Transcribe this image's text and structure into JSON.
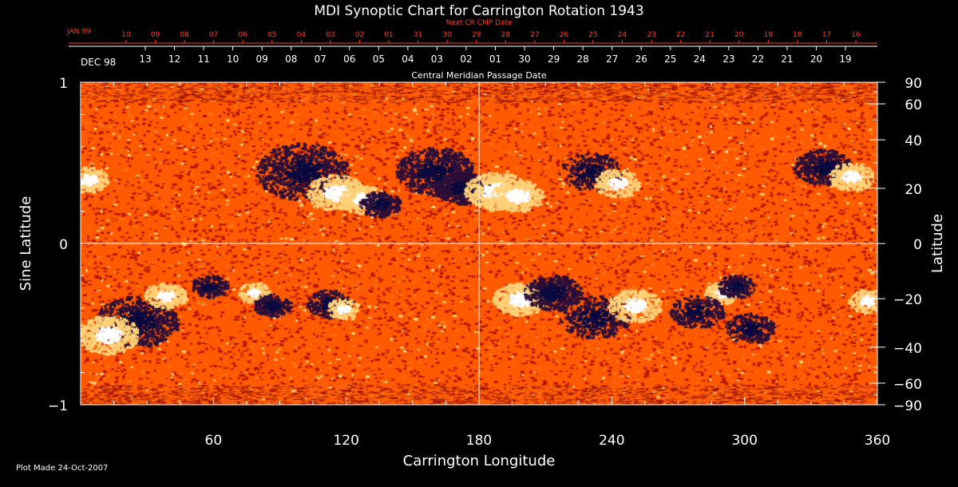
{
  "chart_data": {
    "type": "heatmap",
    "title": "MDI Synoptic Chart for Carrington Rotation 1943",
    "xlabel": "Carrington Longitude",
    "ylabel_left": "Sine Latitude",
    "ylabel_right": "Latitude",
    "xlim": [
      0,
      360
    ],
    "ylim": [
      -1,
      1
    ],
    "x_ticks": [
      60,
      120,
      180,
      240,
      300,
      360
    ],
    "y_ticks_left": [
      {
        "value": 1,
        "label": "1"
      },
      {
        "value": 0,
        "label": "0"
      },
      {
        "value": -1,
        "label": "−1"
      }
    ],
    "y_ticks_right": [
      {
        "lat": 90,
        "label": "90"
      },
      {
        "lat": 60,
        "label": "60"
      },
      {
        "lat": 40,
        "label": "40"
      },
      {
        "lat": 20,
        "label": "20"
      },
      {
        "lat": 0,
        "label": "0"
      },
      {
        "lat": -20,
        "label": "−20"
      },
      {
        "lat": -40,
        "label": "−40"
      },
      {
        "lat": -60,
        "label": "−60"
      },
      {
        "lat": -90,
        "label": "−90"
      }
    ],
    "top_axis_red": {
      "title": "Next CR CMP Date",
      "month_label": "JAN 99",
      "labels": [
        "10",
        "09",
        "08",
        "07",
        "06",
        "05",
        "04",
        "03",
        "02",
        "01",
        "31",
        "30",
        "29",
        "28",
        "27",
        "26",
        "25",
        "24",
        "23",
        "22",
        "21",
        "20",
        "19",
        "18",
        "17",
        "16"
      ],
      "color": "#ff3b1f"
    },
    "top_axis_white": {
      "title": "Central Meridian Passage Date",
      "month_label": "DEC 98",
      "labels": [
        "13",
        "12",
        "11",
        "10",
        "09",
        "08",
        "07",
        "06",
        "05",
        "04",
        "03",
        "02",
        "01",
        "30",
        "29",
        "28",
        "27",
        "26",
        "25",
        "24",
        "23",
        "22",
        "21",
        "20",
        "19"
      ]
    },
    "grid": false,
    "crosshair": {
      "x": 180,
      "y": 0
    },
    "colormap": [
      "#0a0a40",
      "#b81900",
      "#ff5a00",
      "#ffd27a",
      "#ffffff"
    ],
    "footer": "Plot Made 24-Oct-2007"
  }
}
